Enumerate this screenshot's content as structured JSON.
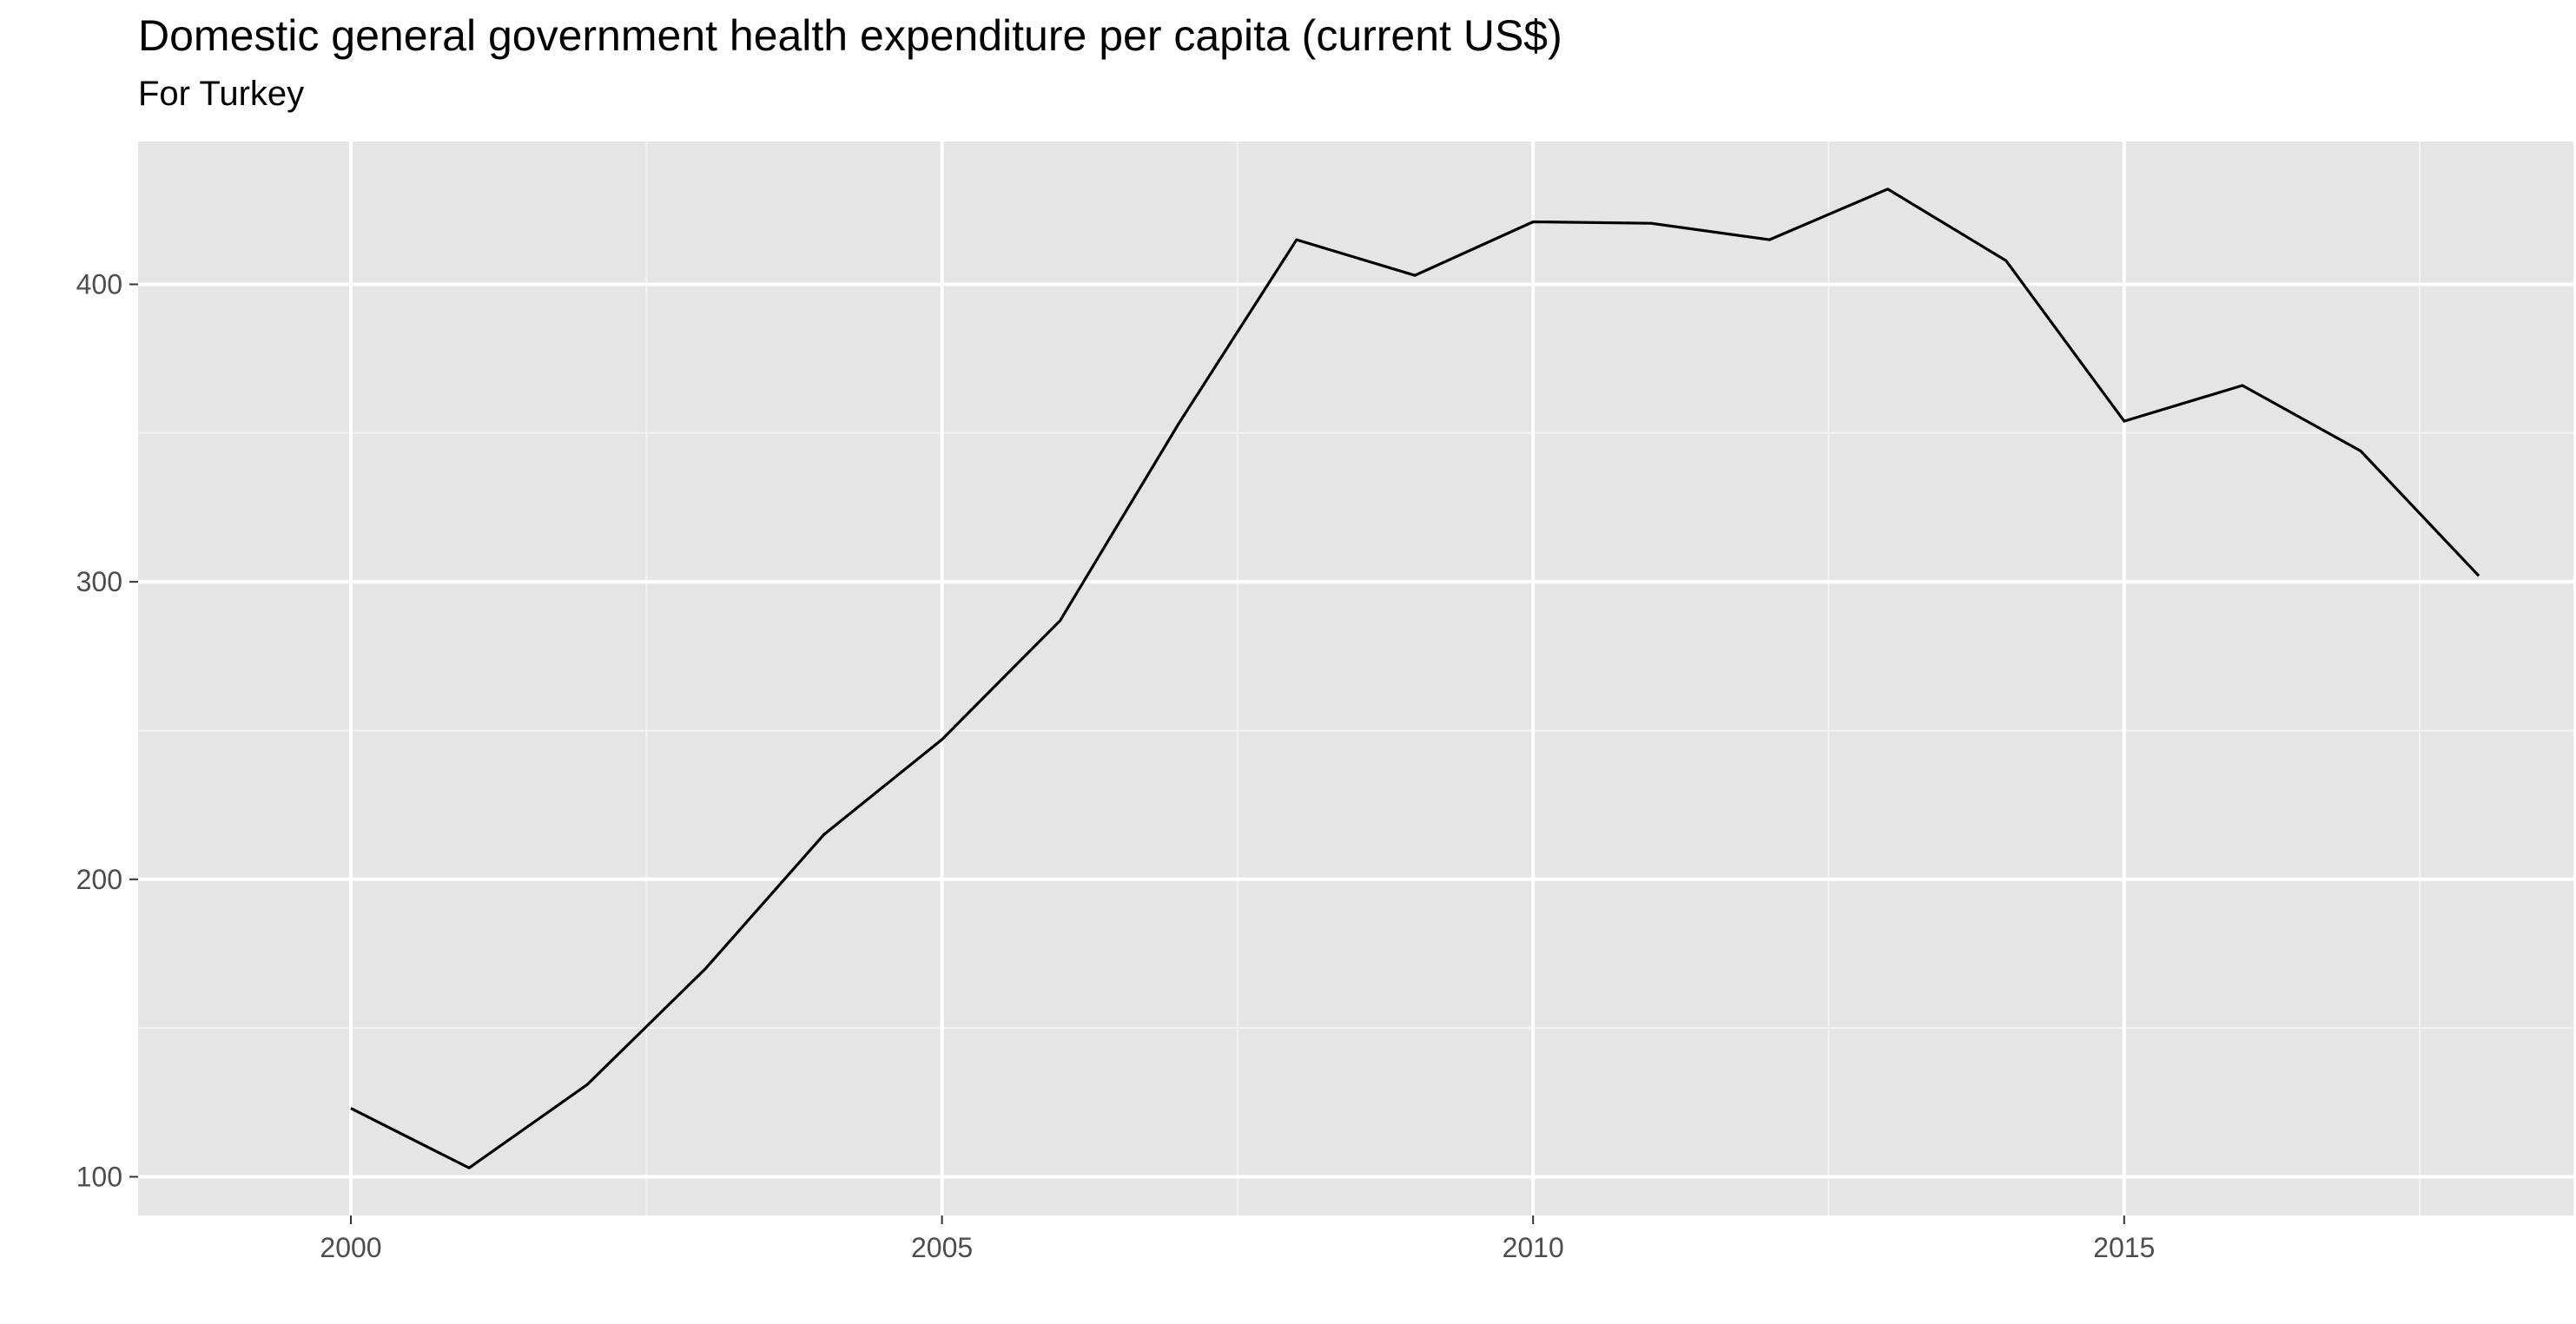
{
  "chart_data": {
    "type": "line",
    "title": "Domestic general government health expenditure per capita (current US$)",
    "subtitle": "For Turkey",
    "xlabel": "",
    "ylabel": "",
    "x": [
      2000,
      2001,
      2002,
      2003,
      2004,
      2005,
      2006,
      2007,
      2008,
      2009,
      2010,
      2011,
      2012,
      2013,
      2014,
      2015,
      2016,
      2017,
      2018
    ],
    "values": [
      123,
      103,
      131,
      170,
      215,
      247,
      287,
      353,
      415,
      403,
      421,
      420.5,
      415,
      432,
      408,
      354,
      366,
      344,
      302
    ],
    "xlim": [
      1998.2,
      2018.8
    ],
    "ylim": [
      87,
      448
    ],
    "x_ticks": [
      2000,
      2005,
      2010,
      2015
    ],
    "x_tick_labels": [
      "2000",
      "2005",
      "2010",
      "2015"
    ],
    "x_minor_ticks": [
      2002.5,
      2007.5,
      2012.5,
      2017.5
    ],
    "y_ticks": [
      100,
      200,
      300,
      400
    ],
    "y_tick_labels": [
      "100",
      "200",
      "300",
      "400"
    ],
    "y_minor_ticks": [
      150,
      250,
      350
    ],
    "grid": true,
    "legend": "none",
    "colors": {
      "panel_background": "#e5e5e5",
      "grid_major": "#ffffff",
      "grid_minor": "#f2f2f2",
      "line": "#000000",
      "tick_text": "#4d4d4d",
      "tick_mark": "#333333"
    }
  }
}
